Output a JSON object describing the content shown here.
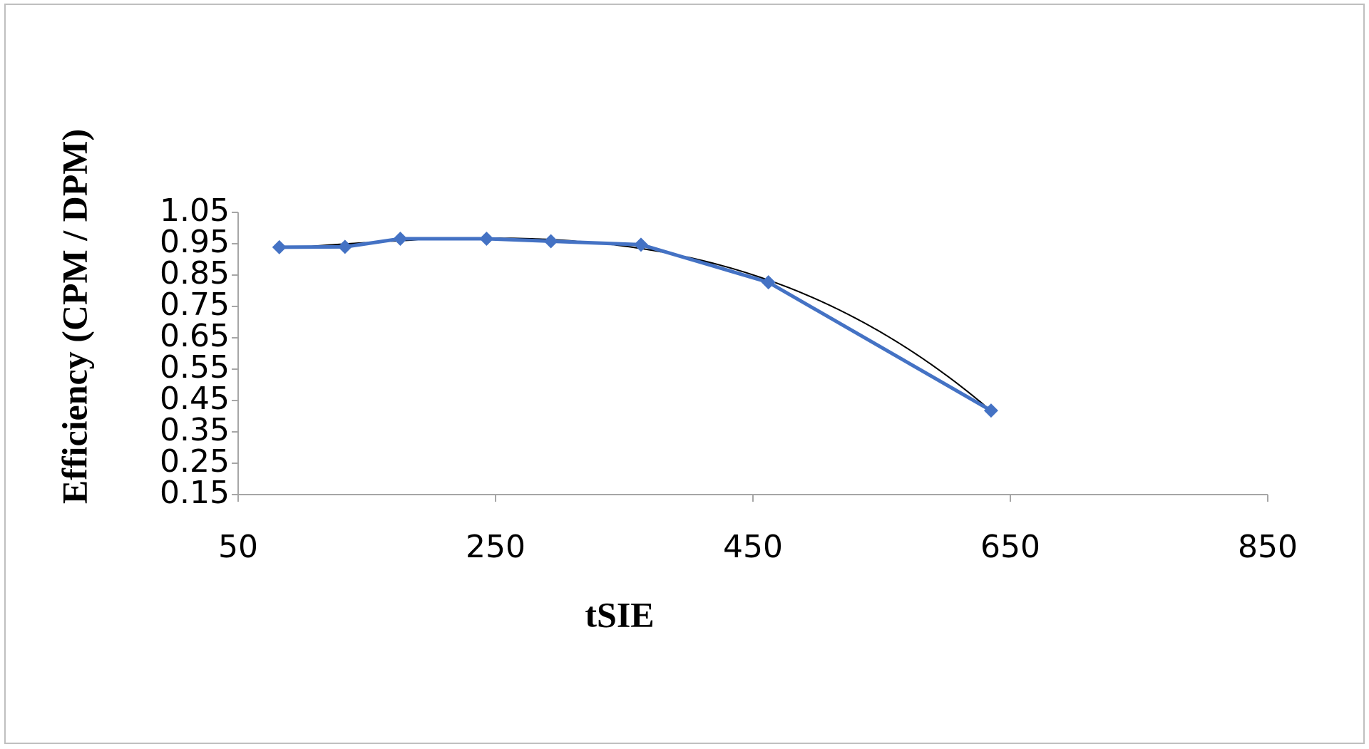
{
  "chart_data": {
    "type": "line",
    "x_label": "tSIE",
    "y_label": "Efficiency (CPM / DPM)",
    "x": [
      82,
      133,
      176,
      243,
      293,
      363,
      462,
      635
    ],
    "series": [
      {
        "color": "#4472c4",
        "marker": "diamond",
        "values": [
          0.939,
          0.94,
          0.966,
          0.966,
          0.958,
          0.947,
          0.827,
          0.418
        ]
      }
    ],
    "trendline": {
      "type": "polynomial",
      "order": 3,
      "color": "#000000"
    },
    "xlim": [
      50,
      850
    ],
    "xticks": [
      50,
      250,
      450,
      650,
      850
    ],
    "ylim": [
      0.15,
      1.05
    ],
    "yticks": [
      0.15,
      0.25,
      0.35,
      0.45,
      0.55,
      0.65,
      0.75,
      0.85,
      0.95,
      1.05
    ],
    "grid": false
  }
}
